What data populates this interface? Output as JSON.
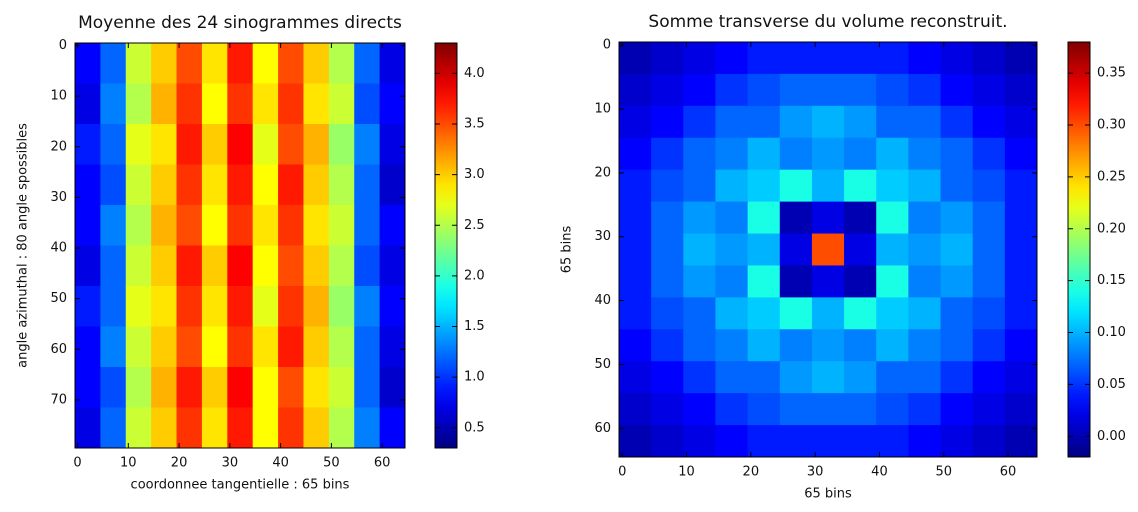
{
  "chart_data": [
    {
      "type": "heatmap",
      "title": "Moyenne des 24 sinogrammes directs",
      "xlabel": "coordonnee tangentielle : 65 bins",
      "ylabel": "angle azimuthal : 80 angle spossibles",
      "xlim": [
        -0.5,
        64.5
      ],
      "ylim": [
        79.5,
        -0.5
      ],
      "xticks": [
        0,
        10,
        20,
        30,
        40,
        50,
        60
      ],
      "yticks": [
        0,
        10,
        20,
        30,
        40,
        50,
        60,
        70
      ],
      "colormap": "jet",
      "clim": [
        0.3,
        4.3
      ],
      "cticks": [
        0.5,
        {
          "value": 1.0,
          "label": "1.0"
        },
        1.5,
        {
          "value": 2.0,
          "label": "2.0"
        },
        2.5,
        {
          "value": 3.0,
          "label": "3.0"
        },
        3.5,
        {
          "value": 4.0,
          "label": "4.0"
        }
      ],
      "z": [
        [
          0.8,
          1.2,
          2.6,
          3.0,
          3.5,
          2.9,
          3.7,
          2.8,
          3.5,
          3.0,
          2.5,
          1.2,
          0.7
        ],
        [
          0.7,
          1.3,
          2.5,
          3.1,
          3.6,
          2.8,
          3.6,
          2.9,
          3.6,
          2.9,
          2.6,
          1.1,
          0.8
        ],
        [
          0.9,
          1.2,
          2.7,
          2.9,
          3.7,
          3.0,
          3.8,
          2.7,
          3.5,
          3.1,
          2.4,
          1.3,
          0.7
        ],
        [
          0.8,
          1.1,
          2.6,
          3.0,
          3.6,
          2.9,
          3.7,
          2.8,
          3.7,
          3.0,
          2.5,
          1.2,
          0.6
        ],
        [
          0.8,
          1.3,
          2.5,
          3.1,
          3.5,
          2.8,
          3.6,
          2.9,
          3.6,
          2.9,
          2.6,
          1.2,
          0.8
        ],
        [
          0.7,
          1.2,
          2.6,
          3.0,
          3.7,
          3.0,
          3.8,
          2.8,
          3.5,
          3.0,
          2.5,
          1.1,
          0.7
        ],
        [
          0.9,
          1.2,
          2.7,
          2.9,
          3.6,
          2.9,
          3.7,
          2.7,
          3.6,
          3.1,
          2.4,
          1.3,
          0.8
        ],
        [
          0.8,
          1.3,
          2.6,
          3.0,
          3.5,
          2.8,
          3.6,
          2.9,
          3.7,
          3.0,
          2.5,
          1.2,
          0.7
        ],
        [
          0.8,
          1.1,
          2.5,
          3.1,
          3.7,
          3.0,
          3.8,
          2.8,
          3.5,
          2.9,
          2.6,
          1.2,
          0.6
        ],
        [
          0.7,
          1.2,
          2.6,
          3.0,
          3.6,
          2.9,
          3.7,
          2.8,
          3.6,
          3.0,
          2.5,
          1.3,
          0.8
        ]
      ]
    },
    {
      "type": "heatmap",
      "title": "Somme transverse du volume reconstruit.",
      "xlabel": "65 bins",
      "ylabel": "65 bins",
      "xlim": [
        -0.5,
        64.5
      ],
      "ylim": [
        64.5,
        -0.5
      ],
      "xticks": [
        0,
        10,
        20,
        30,
        40,
        50,
        60
      ],
      "yticks": [
        0,
        10,
        20,
        30,
        40,
        50,
        60
      ],
      "colormap": "jet",
      "clim": [
        -0.02,
        0.38
      ],
      "cticks": [
        {
          "value": 0.0,
          "label": "0.00"
        },
        0.05,
        {
          "value": 0.1,
          "label": "0.10"
        },
        0.15,
        {
          "value": 0.2,
          "label": "0.20"
        },
        0.25,
        {
          "value": 0.3,
          "label": "0.30"
        },
        0.35
      ],
      "z": [
        [
          0,
          0.01,
          0.02,
          0.03,
          0.04,
          0.04,
          0.04,
          0.04,
          0.04,
          0.03,
          0.02,
          0.01,
          0
        ],
        [
          0.01,
          0.02,
          0.03,
          0.05,
          0.06,
          0.07,
          0.07,
          0.07,
          0.06,
          0.05,
          0.03,
          0.02,
          0.01
        ],
        [
          0.02,
          0.03,
          0.05,
          0.07,
          0.07,
          0.09,
          0.1,
          0.09,
          0.07,
          0.07,
          0.05,
          0.03,
          0.02
        ],
        [
          0.03,
          0.05,
          0.07,
          0.08,
          0.1,
          0.08,
          0.09,
          0.08,
          0.1,
          0.08,
          0.07,
          0.05,
          0.03
        ],
        [
          0.04,
          0.06,
          0.07,
          0.1,
          0.11,
          0.14,
          0.1,
          0.14,
          0.11,
          0.1,
          0.07,
          0.06,
          0.04
        ],
        [
          0.04,
          0.07,
          0.09,
          0.08,
          0.14,
          0,
          0.02,
          0,
          0.14,
          0.08,
          0.09,
          0.07,
          0.04
        ],
        [
          0.04,
          0.07,
          0.1,
          0.09,
          0.1,
          0.02,
          0.3,
          0.02,
          0.1,
          0.09,
          0.1,
          0.07,
          0.04
        ],
        [
          0.04,
          0.07,
          0.09,
          0.08,
          0.14,
          0,
          0.02,
          0,
          0.14,
          0.08,
          0.09,
          0.07,
          0.04
        ],
        [
          0.04,
          0.06,
          0.07,
          0.1,
          0.11,
          0.14,
          0.1,
          0.14,
          0.11,
          0.1,
          0.07,
          0.06,
          0.04
        ],
        [
          0.03,
          0.05,
          0.07,
          0.08,
          0.1,
          0.08,
          0.09,
          0.08,
          0.1,
          0.08,
          0.07,
          0.05,
          0.03
        ],
        [
          0.02,
          0.03,
          0.05,
          0.07,
          0.07,
          0.09,
          0.1,
          0.09,
          0.07,
          0.07,
          0.05,
          0.03,
          0.02
        ],
        [
          0.01,
          0.02,
          0.03,
          0.05,
          0.06,
          0.07,
          0.07,
          0.07,
          0.06,
          0.05,
          0.03,
          0.02,
          0.01
        ],
        [
          0,
          0.01,
          0.02,
          0.03,
          0.04,
          0.04,
          0.04,
          0.04,
          0.04,
          0.03,
          0.02,
          0.01,
          0
        ]
      ]
    }
  ]
}
